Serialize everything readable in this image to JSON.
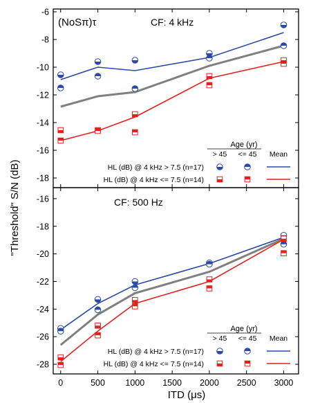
{
  "figure": {
    "ylabel": "\"Threshold\" S/N (dB)",
    "xlabel": "ITD (μs)",
    "x_ticks": [
      "0",
      "500",
      "1000",
      "1500",
      "2000",
      "2500",
      "3000"
    ],
    "colors": {
      "high_hl": "#2b4aa8",
      "low_hl": "#e4211c",
      "overall_mean": "#808080"
    }
  },
  "chart_data": [
    {
      "type": "line",
      "panel": "top",
      "label_left": "(NoSπ)τ",
      "label_cf": "CF: 4 kHz",
      "x": [
        0,
        500,
        1000,
        2000,
        3000
      ],
      "xlim": [
        -100,
        3200
      ],
      "ylim": [
        -18.7,
        -5.8
      ],
      "y_ticks": [
        "-6",
        "-8",
        "-10",
        "-12",
        "-14",
        "-16",
        "-18"
      ],
      "y_tick_values": [
        -6,
        -8,
        -10,
        -12,
        -14,
        -16,
        -18
      ],
      "legend": {
        "age_title": "Age (yr)",
        "col_gt45": "> 45",
        "col_le45": "<= 45",
        "col_mean": "Mean",
        "row_high": "HL (dB) @ 4 kHz   > 7.5 (n=17)",
        "row_low": "HL (dB) @ 4 kHz <= 7.5 (n=14)"
      },
      "series": [
        {
          "group": "high_hl",
          "kind": "mean",
          "values": [
            -10.9,
            -10.0,
            -10.25,
            -9.3,
            -7.5
          ]
        },
        {
          "group": "high_hl",
          "kind": "age_gt45",
          "values": [
            -10.55,
            -9.6,
            -9.5,
            -9.0,
            -6.95
          ]
        },
        {
          "group": "high_hl",
          "kind": "age_le45",
          "values": [
            -11.5,
            -10.65,
            -11.55,
            -9.35,
            -8.45
          ]
        },
        {
          "group": "low_hl",
          "kind": "mean",
          "values": [
            -15.3,
            -14.6,
            -13.6,
            -10.8,
            -9.6
          ]
        },
        {
          "group": "low_hl",
          "kind": "age_gt45",
          "values": [
            -14.55,
            -14.55,
            -13.4,
            -10.65,
            -9.5
          ]
        },
        {
          "group": "low_hl",
          "kind": "age_le45",
          "values": [
            -15.3,
            -14.6,
            -14.7,
            -11.3,
            -9.75
          ]
        },
        {
          "group": "overall_mean",
          "kind": "mean",
          "values": [
            -12.85,
            -12.1,
            -11.8,
            -9.9,
            -8.45
          ]
        }
      ]
    },
    {
      "type": "line",
      "panel": "bottom",
      "label_left": "",
      "label_cf": "CF: 500 Hz",
      "x": [
        0,
        500,
        1000,
        2000,
        3000
      ],
      "xlim": [
        -100,
        3200
      ],
      "ylim": [
        -28.7,
        -15.2
      ],
      "y_ticks": [
        "-16",
        "-18",
        "-20",
        "-22",
        "-24",
        "-26",
        "-28"
      ],
      "y_tick_values": [
        -16,
        -18,
        -20,
        -22,
        -24,
        -26,
        -28
      ],
      "legend": {
        "age_title": "Age (yr)",
        "col_gt45": "> 45",
        "col_le45": "<= 45",
        "col_mean": "Mean",
        "row_high": "HL (dB) @ 4 kHz   > 7.5 (n=17)",
        "row_low": "HL (dB) @ 4 kHz <= 7.5 (n=14)"
      },
      "series": [
        {
          "group": "high_hl",
          "kind": "mean",
          "values": [
            -25.5,
            -23.6,
            -22.25,
            -20.7,
            -18.8
          ]
        },
        {
          "group": "high_hl",
          "kind": "age_gt45",
          "values": [
            -25.4,
            -23.3,
            -22.0,
            -20.65,
            -18.65
          ]
        },
        {
          "group": "high_hl",
          "kind": "age_le45",
          "values": [
            -25.6,
            -24.05,
            -22.45,
            -20.75,
            -19.3
          ]
        },
        {
          "group": "low_hl",
          "kind": "mean",
          "values": [
            -27.8,
            -25.6,
            -23.6,
            -22.0,
            -18.95
          ]
        },
        {
          "group": "low_hl",
          "kind": "age_gt45",
          "values": [
            -27.5,
            -25.2,
            -23.35,
            -21.85,
            -18.9
          ]
        },
        {
          "group": "low_hl",
          "kind": "age_le45",
          "values": [
            -28.05,
            -25.9,
            -23.8,
            -22.5,
            -19.95
          ]
        },
        {
          "group": "overall_mean",
          "kind": "mean",
          "values": [
            -26.6,
            -24.4,
            -22.85,
            -21.3,
            -18.9
          ]
        }
      ]
    }
  ]
}
